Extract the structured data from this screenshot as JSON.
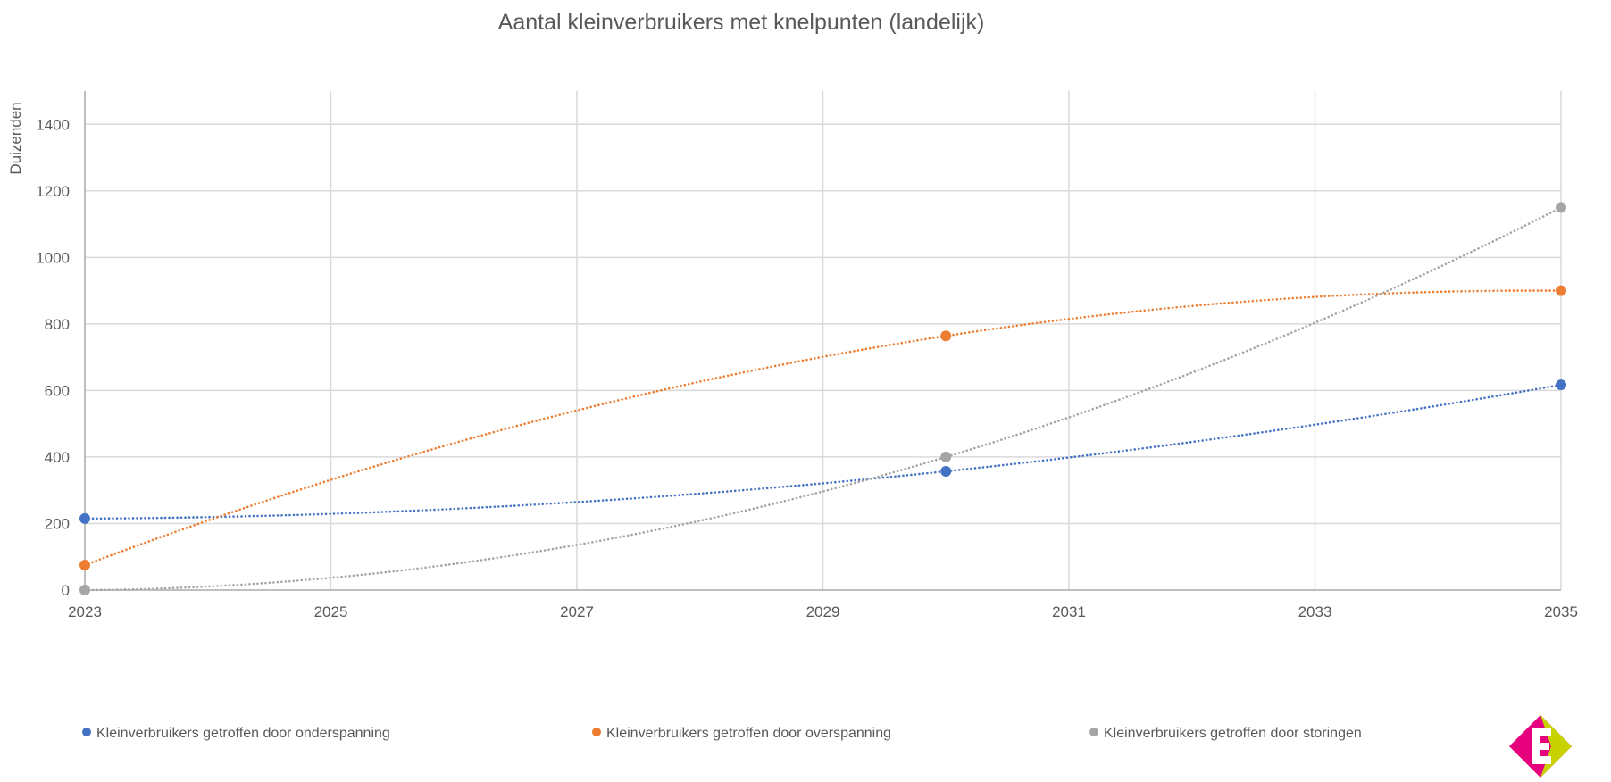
{
  "chart_data": {
    "type": "scatter",
    "title": "Aantal kleinverbruikers met knelpunten (landelijk)",
    "ylabel": "Duizenden",
    "xlabel": "",
    "xlim": [
      2023,
      2035
    ],
    "ylim": [
      0,
      1500
    ],
    "x_ticks": [
      2023,
      2025,
      2027,
      2029,
      2031,
      2033,
      2035
    ],
    "y_ticks": [
      0,
      200,
      400,
      600,
      800,
      1000,
      1200,
      1400
    ],
    "grid": true,
    "legend_position": "bottom",
    "series": [
      {
        "name": "Kleinverbruikers getroffen door onderspanning",
        "color": "#4472c4",
        "points": [
          {
            "x": 2023,
            "y": 215
          },
          {
            "x": 2030,
            "y": 357
          },
          {
            "x": 2035,
            "y": 617
          }
        ],
        "trendline": "polynomial"
      },
      {
        "name": "Kleinverbruikers getroffen door overspanning",
        "color": "#ed7d31",
        "points": [
          {
            "x": 2023,
            "y": 75
          },
          {
            "x": 2030,
            "y": 764
          },
          {
            "x": 2035,
            "y": 900
          }
        ],
        "trendline": "polynomial"
      },
      {
        "name": "Kleinverbruikers getroffen door storingen",
        "color": "#a5a5a5",
        "points": [
          {
            "x": 2023,
            "y": 0
          },
          {
            "x": 2030,
            "y": 400
          },
          {
            "x": 2035,
            "y": 1150
          }
        ],
        "trendline": "polynomial"
      }
    ]
  },
  "logo": {
    "name": "enexis-logo",
    "colors": [
      "#e6007e",
      "#c7d300",
      "#ffffff"
    ]
  }
}
